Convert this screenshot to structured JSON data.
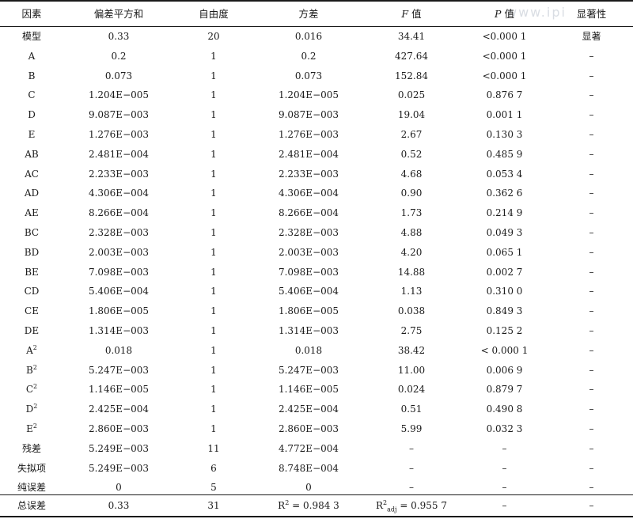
{
  "watermark": "www.ipi",
  "headers": {
    "factor": "因素",
    "ss": "偏差平方和",
    "df": "自由度",
    "ms": "方差",
    "f_italic": "F",
    "f_rest": " 值",
    "p_italic": "P",
    "p_rest": " 值",
    "sig": "显著性"
  },
  "rows": [
    {
      "factor": "模型",
      "ss": "0.33",
      "df": "20",
      "ms": "0.016",
      "f": "34.41",
      "p": "<0.000 1",
      "sig": "显著"
    },
    {
      "factor": "A",
      "ss": "0.2",
      "df": "1",
      "ms": "0.2",
      "f": "427.64",
      "p": "<0.000 1",
      "sig": "–"
    },
    {
      "factor": "B",
      "ss": "0.073",
      "df": "1",
      "ms": "0.073",
      "f": "152.84",
      "p": "<0.000 1",
      "sig": "–"
    },
    {
      "factor": "C",
      "ss": "1.204E−005",
      "df": "1",
      "ms": "1.204E−005",
      "f": "0.025",
      "p": "0.876 7",
      "sig": "–"
    },
    {
      "factor": "D",
      "ss": "9.087E−003",
      "df": "1",
      "ms": "9.087E−003",
      "f": "19.04",
      "p": "0.001 1",
      "sig": "–"
    },
    {
      "factor": "E",
      "ss": "1.276E−003",
      "df": "1",
      "ms": "1.276E−003",
      "f": "2.67",
      "p": "0.130 3",
      "sig": "–"
    },
    {
      "factor": "AB",
      "ss": "2.481E−004",
      "df": "1",
      "ms": "2.481E−004",
      "f": "0.52",
      "p": "0.485 9",
      "sig": "–"
    },
    {
      "factor": "AC",
      "ss": "2.233E−003",
      "df": "1",
      "ms": "2.233E−003",
      "f": "4.68",
      "p": "0.053 4",
      "sig": "–"
    },
    {
      "factor": "AD",
      "ss": "4.306E−004",
      "df": "1",
      "ms": "4.306E−004",
      "f": "0.90",
      "p": "0.362 6",
      "sig": "–"
    },
    {
      "factor": "AE",
      "ss": "8.266E−004",
      "df": "1",
      "ms": "8.266E−004",
      "f": "1.73",
      "p": "0.214 9",
      "sig": "–"
    },
    {
      "factor": "BC",
      "ss": "2.328E−003",
      "df": "1",
      "ms": "2.328E−003",
      "f": "4.88",
      "p": "0.049 3",
      "sig": "–"
    },
    {
      "factor": "BD",
      "ss": "2.003E−003",
      "df": "1",
      "ms": "2.003E−003",
      "f": "4.20",
      "p": "0.065 1",
      "sig": "–"
    },
    {
      "factor": "BE",
      "ss": "7.098E−003",
      "df": "1",
      "ms": "7.098E−003",
      "f": "14.88",
      "p": "0.002 7",
      "sig": "–"
    },
    {
      "factor": "CD",
      "ss": "5.406E−004",
      "df": "1",
      "ms": "5.406E−004",
      "f": "1.13",
      "p": "0.310 0",
      "sig": "–"
    },
    {
      "factor": "CE",
      "ss": "1.806E−005",
      "df": "1",
      "ms": "1.806E−005",
      "f": "0.038",
      "p": "0.849 3",
      "sig": "–"
    },
    {
      "factor": "DE",
      "ss": "1.314E−003",
      "df": "1",
      "ms": "1.314E−003",
      "f": "2.75",
      "p": "0.125 2",
      "sig": "–"
    },
    {
      "factor": "A",
      "sup": "2",
      "ss": "0.018",
      "df": "1",
      "ms": "0.018",
      "f": "38.42",
      "p": "< 0.000 1",
      "sig": "–"
    },
    {
      "factor": "B",
      "sup": "2",
      "ss": "5.247E−003",
      "df": "1",
      "ms": "5.247E−003",
      "f": "11.00",
      "p": "0.006 9",
      "sig": "–"
    },
    {
      "factor": "C",
      "sup": "2",
      "ss": "1.146E−005",
      "df": "1",
      "ms": "1.146E−005",
      "f": "0.024",
      "p": "0.879 7",
      "sig": "–"
    },
    {
      "factor": "D",
      "sup": "2",
      "ss": "2.425E−004",
      "df": "1",
      "ms": "2.425E−004",
      "f": "0.51",
      "p": "0.490 8",
      "sig": "–"
    },
    {
      "factor": "E",
      "sup": "2",
      "ss": "2.860E−003",
      "df": "1",
      "ms": "2.860E−003",
      "f": "5.99",
      "p": "0.032 3",
      "sig": "–"
    },
    {
      "factor": "残差",
      "ss": "5.249E−003",
      "df": "11",
      "ms": "4.772E−004",
      "f": "–",
      "p": "–",
      "sig": "–"
    },
    {
      "factor": "失拟项",
      "ss": "5.249E−003",
      "df": "6",
      "ms": "8.748E−004",
      "f": "–",
      "p": "–",
      "sig": "–"
    },
    {
      "factor": "纯误差",
      "ss": "0",
      "df": "5",
      "ms": "0",
      "f": "–",
      "p": "–",
      "sig": "–"
    }
  ],
  "total": {
    "factor": "总误差",
    "ss": "0.33",
    "df": "31",
    "r2_label": "R",
    "r2_sup": "2",
    "r2_value": " = 0.984 3",
    "r2adj_label": "R",
    "r2adj_sup": "2",
    "r2adj_sub": "adj",
    "r2adj_value": " = 0.955 7",
    "p": "–",
    "sig": "–"
  }
}
